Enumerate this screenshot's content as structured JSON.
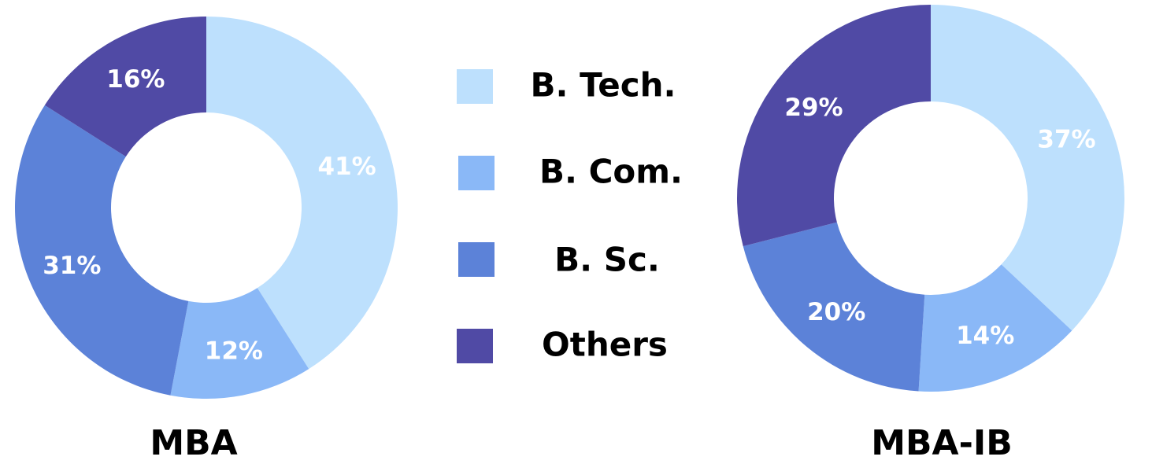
{
  "chart_data": [
    {
      "type": "pie",
      "title": "MBA",
      "categories": [
        "B. Tech.",
        "B. Com.",
        "B. Sc.",
        "Others"
      ],
      "values": [
        41,
        12,
        31,
        16
      ],
      "value_labels": [
        "41%",
        "12%",
        "31%",
        "16%"
      ]
    },
    {
      "type": "pie",
      "title": "MBA-IB",
      "categories": [
        "B. Tech.",
        "B. Com.",
        "B. Sc.",
        "Others"
      ],
      "values": [
        37,
        14,
        20,
        29
      ],
      "value_labels": [
        "37%",
        "14%",
        "20%",
        "29%"
      ]
    }
  ],
  "legend": {
    "placement": "center",
    "items": [
      {
        "label": "B. Tech.",
        "color": "#bde0fd"
      },
      {
        "label": "B. Com.",
        "color": "#8ab8f7"
      },
      {
        "label": "B. Sc.",
        "color": "#5c82d8"
      },
      {
        "label": "Others",
        "color": "#504aa5"
      }
    ]
  }
}
